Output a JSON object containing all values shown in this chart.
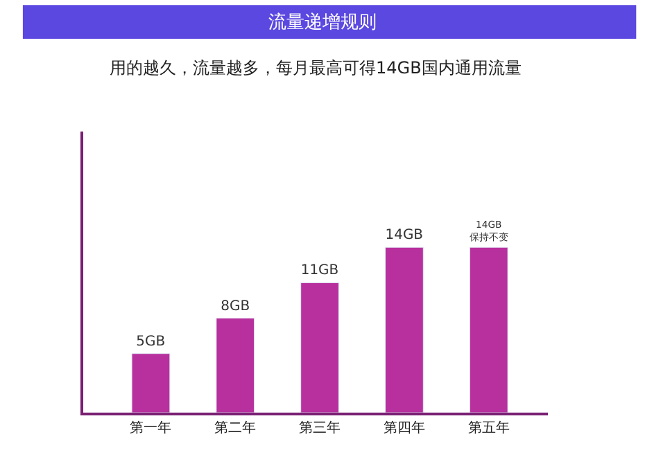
{
  "chart_data": {
    "type": "bar",
    "title": "流量递增规则",
    "subtitle": "用的越久，流量越多，每月最高可得14GB国内通用流量",
    "categories": [
      "第一年",
      "第二年",
      "第三年",
      "第四年",
      "第五年"
    ],
    "values": [
      5,
      8,
      11,
      14,
      14
    ],
    "value_labels": [
      "5GB",
      "8GB",
      "11GB",
      "14GB",
      "14GB\n保持不变"
    ],
    "color": "#b8309e",
    "legend": false
  }
}
